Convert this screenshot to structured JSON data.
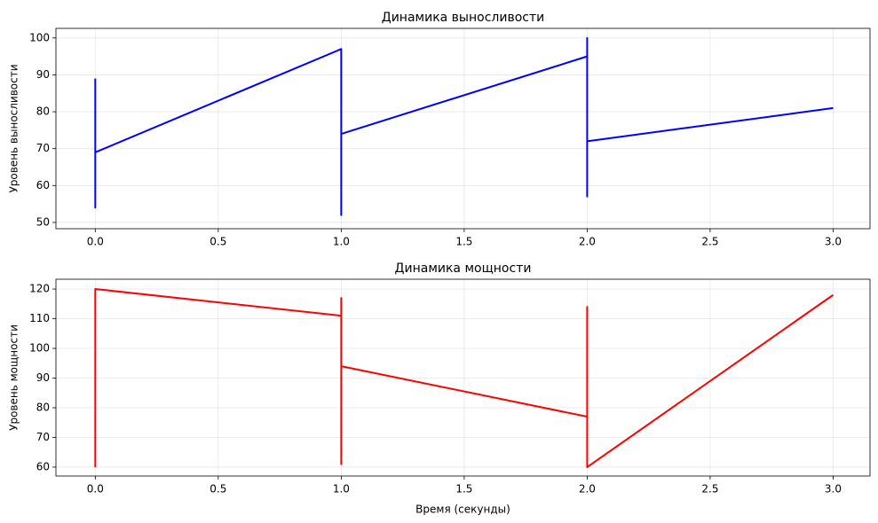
{
  "chart_data": [
    {
      "type": "line",
      "title": "Динамика выносливости",
      "ylabel": "Уровень выносливости",
      "x": [
        0,
        0,
        0,
        1,
        1,
        1,
        2,
        2,
        2,
        2,
        3
      ],
      "values": [
        89,
        54,
        69,
        97,
        52,
        74,
        95,
        57,
        100,
        72,
        81
      ],
      "color": "#0000ff",
      "xlim": [
        -0.16,
        3.15
      ],
      "ylim": [
        48.3,
        102.6
      ],
      "xticks": [
        {
          "value": 0,
          "label": "0.0"
        },
        0.5,
        {
          "value": 1,
          "label": "1.0"
        },
        1.5,
        {
          "value": 2,
          "label": "2.0"
        },
        2.5,
        {
          "value": 3,
          "label": "3.0"
        }
      ],
      "yticks": [
        50,
        60,
        70,
        80,
        90,
        100
      ],
      "grid": true
    },
    {
      "type": "line",
      "title": "Динамика мощности",
      "ylabel": "Уровень мощности",
      "xlabel": "Время (секунды)",
      "x": [
        0,
        0,
        1,
        1,
        1,
        1,
        2,
        2,
        2,
        3
      ],
      "values": [
        60,
        120,
        111,
        61,
        117,
        94,
        77,
        114,
        60,
        118
      ],
      "color": "#ff0000",
      "xlim": [
        -0.16,
        3.15
      ],
      "ylim": [
        57,
        123.3
      ],
      "xticks": [
        {
          "value": 0,
          "label": "0.0"
        },
        0.5,
        {
          "value": 1,
          "label": "1.0"
        },
        1.5,
        {
          "value": 2,
          "label": "2.0"
        },
        2.5,
        {
          "value": 3,
          "label": "3.0"
        }
      ],
      "yticks": [
        60,
        70,
        80,
        90,
        100,
        110,
        120
      ],
      "grid": true
    }
  ]
}
